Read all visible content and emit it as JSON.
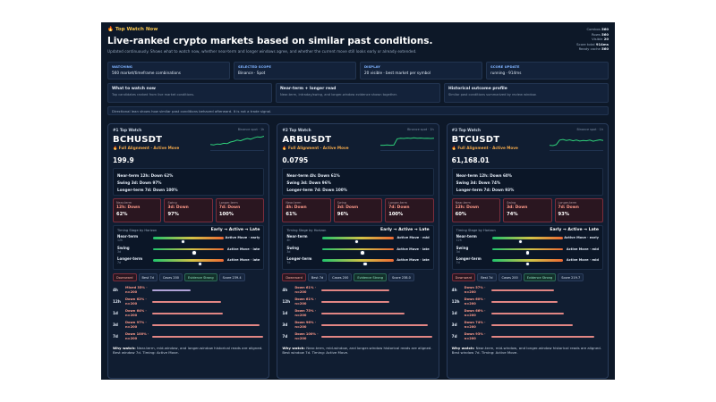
{
  "header": {
    "eyebrow": "Top Watch Now",
    "title": "Live-ranked crypto markets based on similar past conditions.",
    "subtitle": "Updated continuously. Shows what to watch now, whether near-term and longer windows agree, and whether the current move still looks early or already extended."
  },
  "metrics": [
    {
      "label": "Combos",
      "value": "560"
    },
    {
      "label": "Rows",
      "value": "560"
    },
    {
      "label": "Visible",
      "value": "20"
    },
    {
      "label": "Score total",
      "value": "914ms"
    },
    {
      "label": "Ready cache",
      "value": "560"
    }
  ],
  "stats": [
    {
      "label": "WATCHING",
      "value": "560 market/timeframe combinations"
    },
    {
      "label": "SELECTED SCOPE",
      "value": "Binance · Spot"
    },
    {
      "label": "DISPLAY",
      "value": "20 visible · best market per symbol"
    },
    {
      "label": "SCORE UPDATE",
      "value": "running · 914ms"
    }
  ],
  "infos": [
    {
      "title": "What to watch now",
      "desc": "Top candidates ranked from live market conditions."
    },
    {
      "title": "Near-term + longer read",
      "desc": "Near-term, intraday/swing, and longer-window evidence shown together."
    },
    {
      "title": "Historical outcome profile",
      "desc": "Similar past conditions summarized by review window."
    }
  ],
  "disclaimer": "Directional lean shows how similar past conditions behaved afterward. It is not a trade signal.",
  "icons": {
    "flame": "flame-icon"
  },
  "colors": {
    "background": "#0d1828",
    "card": "#101d31",
    "accent_gold": "#f4c44e",
    "alignment": "#f2a84a",
    "down": "#ff9a8a",
    "sparkline": "#2fd07a"
  },
  "cards": [
    {
      "rank": "#1 Top Watch",
      "spark_label": "Binance spot · 1h",
      "spark": [
        0.35,
        0.32,
        0.38,
        0.36,
        0.42,
        0.4,
        0.5,
        0.55,
        0.62,
        0.58,
        0.66,
        0.72,
        0.68,
        0.76,
        0.82,
        0.8,
        0.86
      ],
      "symbol": "BCHUSDT",
      "alignment": "Full Alignment · Active Move",
      "price": "199.9",
      "reads": [
        "Near-term 12h: Down 62%",
        "Swing 3d: Down 97%",
        "Longer-term 7d: Down 100%"
      ],
      "tiles": [
        {
          "label": "Near-term",
          "dir": "12h: Down",
          "pct": "62%"
        },
        {
          "label": "Swing",
          "dir": "3d: Down",
          "pct": "97%"
        },
        {
          "label": "Longer-term",
          "dir": "7d: Down",
          "pct": "100%"
        }
      ],
      "timing_title": "Timing Stage by Horizon",
      "timing_scale": "Early → Active → Late",
      "timing": [
        {
          "name": "Near-term",
          "window": "12h",
          "pos": 0.42,
          "phase": "Active Move · early"
        },
        {
          "name": "Swing",
          "window": "3d",
          "pos": 0.58,
          "phase": "Active Move · late"
        },
        {
          "name": "Longer-term",
          "window": "7d",
          "pos": 0.66,
          "phase": "Active Move · late"
        }
      ],
      "chips": [
        "Downward",
        "Best 7d",
        "Cases 200",
        "Evidence Strong",
        "Score 239.4"
      ],
      "horizons": [
        {
          "label": "4h",
          "dir": "Mixed 35% ·",
          "n": "n=200",
          "value": 0.35,
          "mixed": true
        },
        {
          "label": "12h",
          "dir": "Down 62% ·",
          "n": "n=200",
          "value": 0.62,
          "mixed": false
        },
        {
          "label": "1d",
          "dir": "Down 64% ·",
          "n": "n=200",
          "value": 0.64,
          "mixed": false
        },
        {
          "label": "3d",
          "dir": "Down 97% ·",
          "n": "n=200",
          "value": 0.97,
          "mixed": false
        },
        {
          "label": "7d",
          "dir": "Down 100% ·",
          "n": "n=200",
          "value": 1.0,
          "mixed": false
        }
      ],
      "why_label": "Why watch:",
      "why": "Near-term, mid-window, and longer-window historical reads are aligned. Best window 7d. Timing: Active Move."
    },
    {
      "rank": "#2 Top Watch",
      "spark_label": "Binance spot · 1h",
      "spark": [
        0.3,
        0.3,
        0.32,
        0.3,
        0.31,
        0.7,
        0.74,
        0.72,
        0.75,
        0.73,
        0.76,
        0.74,
        0.75,
        0.73,
        0.74,
        0.72,
        0.74
      ],
      "symbol": "ARBUSDT",
      "alignment": "Full Alignment · Active Move",
      "price": "0.0795",
      "reads": [
        "Near-term 4h: Down 61%",
        "Swing 3d: Down 96%",
        "Longer-term 7d: Down 100%"
      ],
      "tiles": [
        {
          "label": "Near-term",
          "dir": "4h: Down",
          "pct": "61%"
        },
        {
          "label": "Swing",
          "dir": "3d: Down",
          "pct": "96%"
        },
        {
          "label": "Longer-term",
          "dir": "7d: Down",
          "pct": "100%"
        }
      ],
      "timing_title": "Timing Stage by Horizon",
      "timing_scale": "Early → Active → Late",
      "timing": [
        {
          "name": "Near-term",
          "window": "4h",
          "pos": 0.48,
          "phase": "Active Move · mid"
        },
        {
          "name": "Swing",
          "window": "3d",
          "pos": 0.56,
          "phase": "Active Move · late"
        },
        {
          "name": "Longer-term",
          "window": "7d",
          "pos": 0.6,
          "phase": "Active Move · late"
        }
      ],
      "chips": [
        "Downward",
        "Best 7d",
        "Cases 200",
        "Evidence Strong",
        "Score 238.0"
      ],
      "horizons": [
        {
          "label": "4h",
          "dir": "Down 61% ·",
          "n": "n=200",
          "value": 0.61,
          "mixed": false
        },
        {
          "label": "12h",
          "dir": "Down 61% ·",
          "n": "n=200",
          "value": 0.61,
          "mixed": false
        },
        {
          "label": "1d",
          "dir": "Down 75% ·",
          "n": "n=200",
          "value": 0.75,
          "mixed": false
        },
        {
          "label": "3d",
          "dir": "Down 96% ·",
          "n": "n=200",
          "value": 0.96,
          "mixed": false
        },
        {
          "label": "7d",
          "dir": "Down 100% ·",
          "n": "n=200",
          "value": 1.0,
          "mixed": false
        }
      ],
      "why_label": "Why watch:",
      "why": "Near-term, mid-window, and longer-window historical reads are aligned. Best window 7d. Timing: Active Move."
    },
    {
      "rank": "#3 Top Watch",
      "spark_label": "Binance spot · 1h",
      "spark": [
        0.3,
        0.28,
        0.34,
        0.62,
        0.66,
        0.6,
        0.64,
        0.58,
        0.62,
        0.56,
        0.6,
        0.58,
        0.62,
        0.55,
        0.6,
        0.64,
        0.6
      ],
      "symbol": "BTCUSDT",
      "alignment": "Full Alignment · Active Move",
      "price": "61,168.01",
      "reads": [
        "Near-term 12h: Down 60%",
        "Swing 3d: Down 74%",
        "Longer-term 7d: Down 93%"
      ],
      "tiles": [
        {
          "label": "Near-term",
          "dir": "12h: Down",
          "pct": "60%"
        },
        {
          "label": "Swing",
          "dir": "3d: Down",
          "pct": "74%"
        },
        {
          "label": "Longer-term",
          "dir": "7d: Down",
          "pct": "93%"
        }
      ],
      "timing_title": "Timing Stage by Horizon",
      "timing_scale": "Early → Active → Late",
      "timing": [
        {
          "name": "Near-term",
          "window": "12h",
          "pos": 0.4,
          "phase": "Active Move · early"
        },
        {
          "name": "Swing",
          "window": "3d",
          "pos": 0.5,
          "phase": "Active Move · mid"
        },
        {
          "name": "Longer-term",
          "window": "7d",
          "pos": 0.5,
          "phase": "Active Move · mid"
        }
      ],
      "chips": [
        "Downward",
        "Best 7d",
        "Cases 200",
        "Evidence Strong",
        "Score 219.7"
      ],
      "horizons": [
        {
          "label": "4h",
          "dir": "Down 57% ·",
          "n": "n=200",
          "value": 0.57,
          "mixed": false
        },
        {
          "label": "12h",
          "dir": "Down 60% ·",
          "n": "n=200",
          "value": 0.6,
          "mixed": false
        },
        {
          "label": "1d",
          "dir": "Down 66% ·",
          "n": "n=200",
          "value": 0.66,
          "mixed": false
        },
        {
          "label": "3d",
          "dir": "Down 74% ·",
          "n": "n=200",
          "value": 0.74,
          "mixed": false
        },
        {
          "label": "7d",
          "dir": "Down 93% ·",
          "n": "n=200",
          "value": 0.93,
          "mixed": false
        }
      ],
      "why_label": "Why watch:",
      "why": "Near-term, mid-window, and longer-window historical reads are aligned. Best window 7d. Timing: Active Move."
    }
  ]
}
